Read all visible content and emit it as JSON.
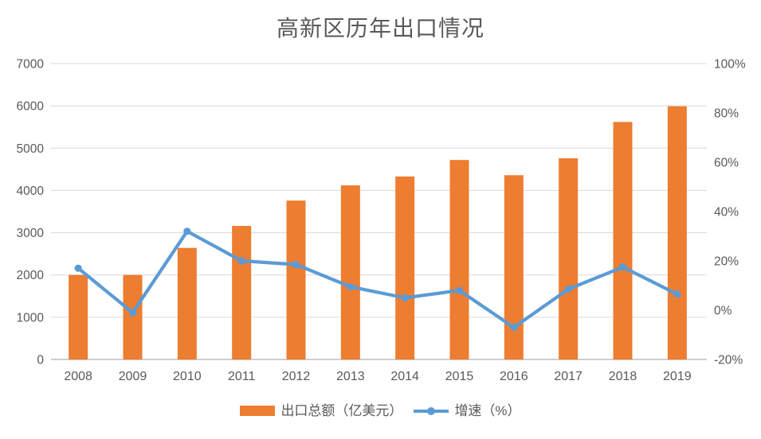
{
  "title": "高新区历年出口情况",
  "legend": {
    "items": [
      {
        "label": "出口总额（亿美元）",
        "marker": "bar-swatch",
        "color": "#ED7D31"
      },
      {
        "label": "增速（%）",
        "marker": "line-swatch",
        "color": "#5B9BD5"
      }
    ]
  },
  "colors": {
    "bar": "#ED7D31",
    "line": "#5B9BD5",
    "grid": "#D9D9D9",
    "axis": "#BFBFBF",
    "text": "#595959"
  },
  "chart_data": {
    "type": "bar",
    "subtype": "combo bar+line, dual axis",
    "title": "高新区历年出口情况",
    "categories": [
      "2008",
      "2009",
      "2010",
      "2011",
      "2012",
      "2013",
      "2014",
      "2015",
      "2016",
      "2017",
      "2018",
      "2019"
    ],
    "series": [
      {
        "name": "出口总额（亿美元）",
        "type": "bar",
        "axis": "left",
        "color": "#ED7D31",
        "values": [
          2000,
          2000,
          2640,
          3160,
          3760,
          4120,
          4330,
          4720,
          4360,
          4760,
          5620,
          5990
        ]
      },
      {
        "name": "增速（%）",
        "type": "line",
        "axis": "right",
        "color": "#5B9BD5",
        "values": [
          17,
          -1,
          32,
          20,
          18.5,
          9.5,
          5,
          8,
          -7,
          8.5,
          17.5,
          6.5
        ]
      }
    ],
    "left_axis": {
      "min": 0,
      "max": 7000,
      "step": 1000,
      "tick_labels": [
        "0",
        "1000",
        "2000",
        "3000",
        "4000",
        "5000",
        "6000",
        "7000"
      ]
    },
    "right_axis": {
      "min": -20,
      "max": 100,
      "step": 20,
      "tick_labels": [
        "-20%",
        "0%",
        "20%",
        "40%",
        "60%",
        "80%",
        "100%"
      ]
    },
    "grid": true,
    "legend_position": "bottom"
  }
}
